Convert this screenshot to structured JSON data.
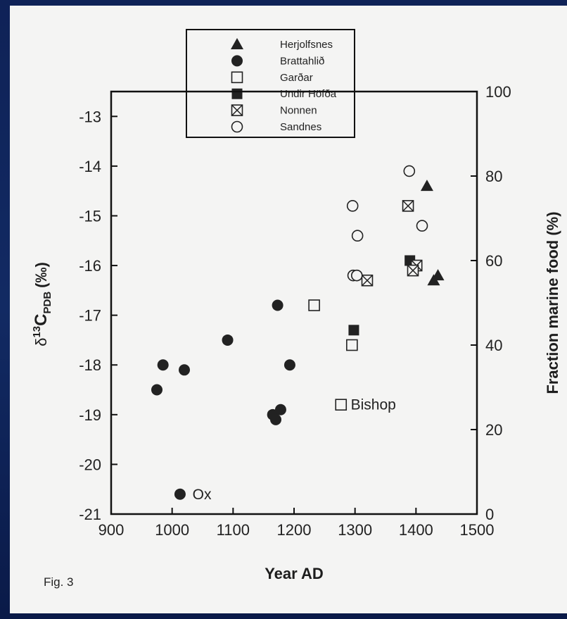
{
  "chart_data": {
    "type": "scatter",
    "figure_label": "Fig. 3",
    "xlabel": "Year AD",
    "ylabel_symbol": "δ",
    "ylabel_sup": "13",
    "ylabel_main": "C",
    "ylabel_sub": "PDB",
    "ylabel_unit": "(‰)",
    "y2label": "Fraction marine food (%)",
    "xlim": [
      900,
      1500
    ],
    "ylim": [
      -21,
      -12.5
    ],
    "y2lim": [
      0,
      100
    ],
    "xticks": [
      "900",
      "1000",
      "1100",
      "1200",
      "1300",
      "1400",
      "1500"
    ],
    "yticks": [
      "-13",
      "-14",
      "-15",
      "-16",
      "-17",
      "-18",
      "-19",
      "-20",
      "-21"
    ],
    "y2ticks": [
      "100",
      "80",
      "60",
      "40",
      "20",
      "0"
    ],
    "legend_position": "top",
    "series": [
      {
        "name": "Herjolfsnes",
        "marker": "triangle",
        "points": [
          [
            1418,
            -14.4
          ],
          [
            1436,
            -16.2
          ],
          [
            1429,
            -16.3
          ]
        ]
      },
      {
        "name": "Brattahlið",
        "marker": "filled-circle",
        "points": [
          [
            975,
            -18.5
          ],
          [
            985,
            -18.0
          ],
          [
            1020,
            -18.1
          ],
          [
            1091,
            -17.5
          ],
          [
            1173,
            -16.8
          ],
          [
            1193,
            -18.0
          ],
          [
            1165,
            -19.0
          ],
          [
            1178,
            -18.9
          ],
          [
            1170,
            -19.1
          ],
          [
            1013,
            -20.6
          ]
        ]
      },
      {
        "name": "Garðar",
        "marker": "open-square",
        "points": [
          [
            1233,
            -16.8
          ],
          [
            1295,
            -17.6
          ],
          [
            1277,
            -18.8
          ]
        ]
      },
      {
        "name": "Undir Höfða",
        "marker": "filled-square",
        "points": [
          [
            1298,
            -17.3
          ],
          [
            1390,
            -15.9
          ]
        ]
      },
      {
        "name": "Nonnen",
        "marker": "crossed-square",
        "points": [
          [
            1387,
            -14.8
          ],
          [
            1320,
            -16.3
          ],
          [
            1401,
            -16.0
          ],
          [
            1395,
            -16.1
          ]
        ]
      },
      {
        "name": "Sandnes",
        "marker": "open-circle",
        "points": [
          [
            1296,
            -14.8
          ],
          [
            1389,
            -14.1
          ],
          [
            1304,
            -15.4
          ],
          [
            1410,
            -15.2
          ],
          [
            1297,
            -16.2
          ],
          [
            1303,
            -16.2
          ]
        ]
      }
    ],
    "annotations": [
      {
        "text": "Bishop",
        "x": 1293,
        "y": -18.8
      },
      {
        "text": "Ox",
        "x": 1030,
        "y": -20.6
      }
    ]
  }
}
